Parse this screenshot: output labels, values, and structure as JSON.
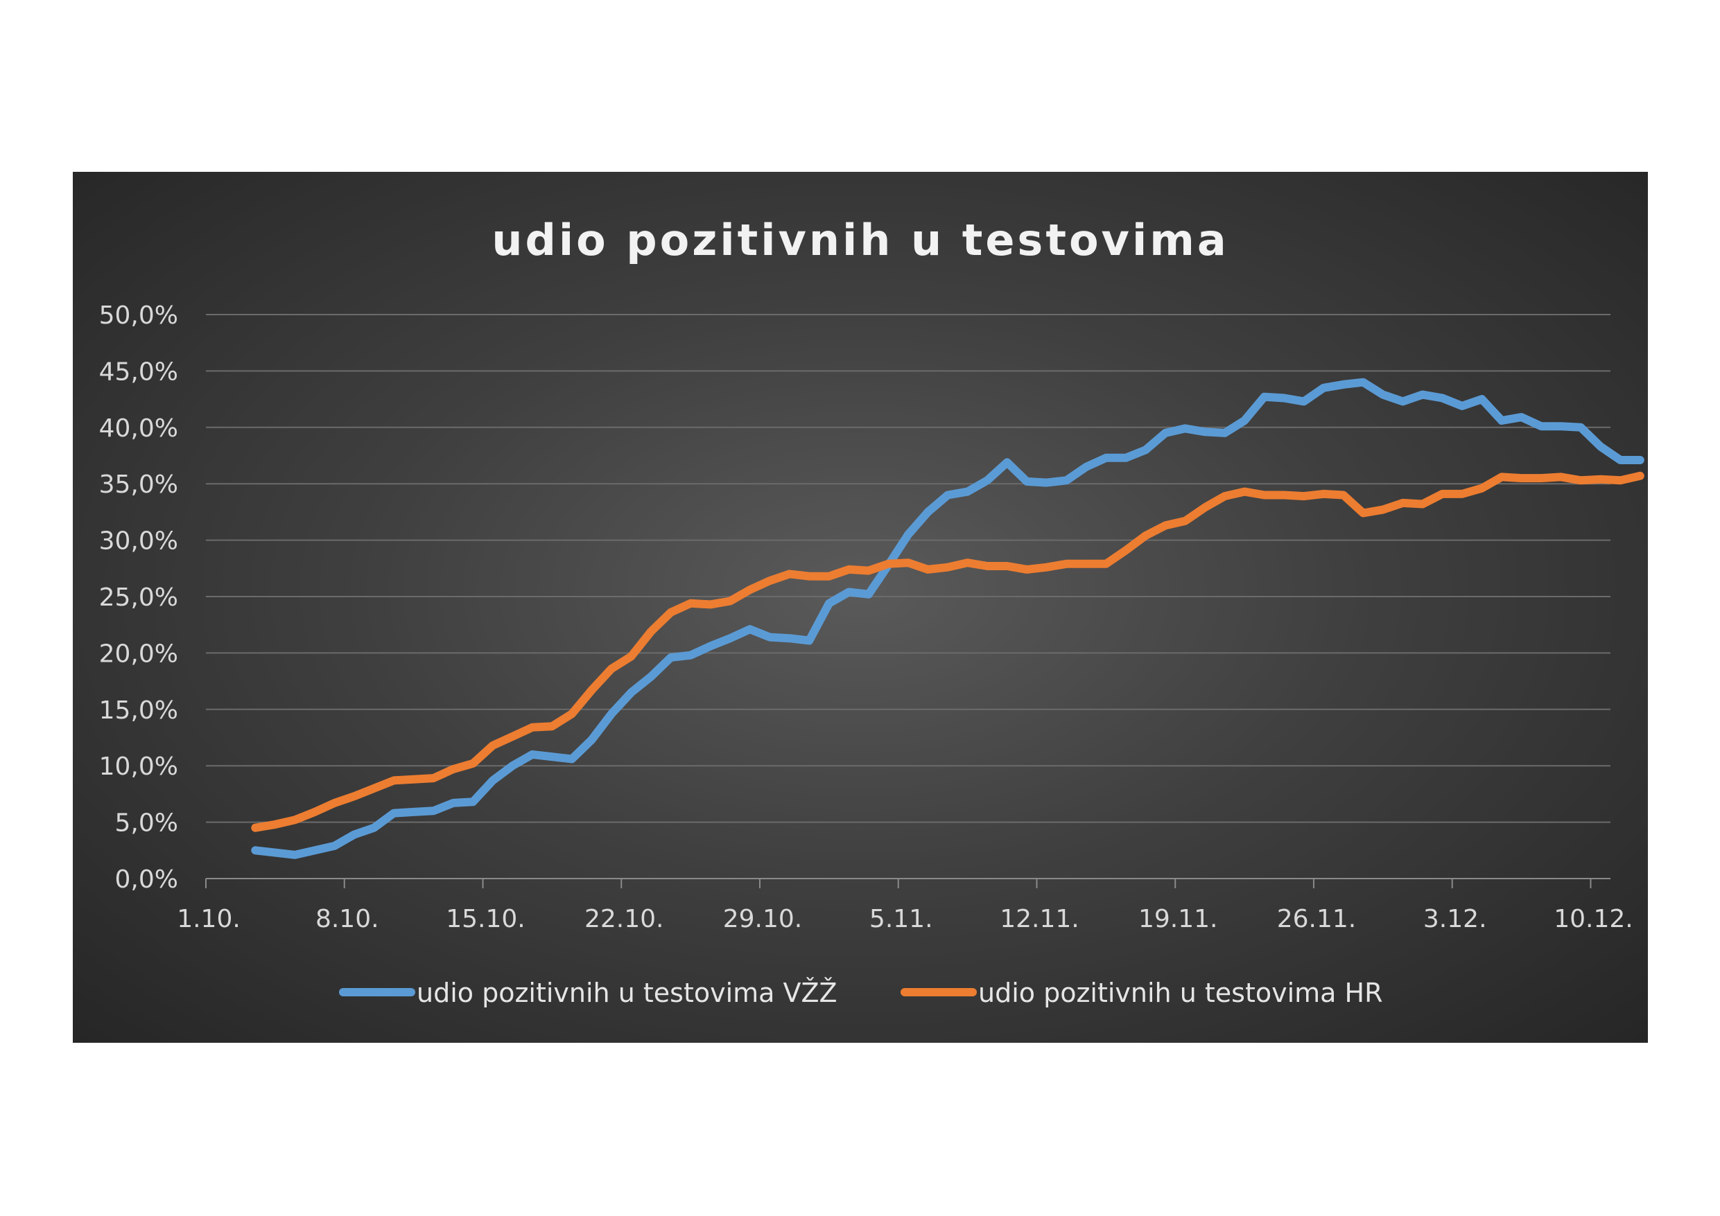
{
  "chart_data": {
    "type": "line",
    "title": "udio pozitivnih u testovima",
    "xlabel": "",
    "ylabel": "",
    "ylim": [
      0,
      50
    ],
    "y_ticks": [
      0,
      5,
      10,
      15,
      20,
      25,
      30,
      35,
      40,
      45,
      50
    ],
    "y_tick_labels": [
      "0,0%",
      "5,0%",
      "10,0%",
      "15,0%",
      "20,0%",
      "25,0%",
      "30,0%",
      "35,0%",
      "40,0%",
      "45,0%",
      "50,0%"
    ],
    "x_tick_labels": [
      "1.10.",
      "8.10.",
      "15.10.",
      "22.10.",
      "29.10.",
      "5.11.",
      "12.11.",
      "19.11.",
      "26.11.",
      "3.12.",
      "10.12."
    ],
    "x_tick_days": [
      1,
      8,
      15,
      22,
      29,
      36,
      43,
      50,
      57,
      64,
      71
    ],
    "x_range_days": [
      1,
      72
    ],
    "legend_position": "bottom",
    "grid": true,
    "series": [
      {
        "name": "udio pozitivnih u testovima VŽŽ",
        "color": "#5b9bd5",
        "start_day": 3.5,
        "values": [
          2.5,
          2.3,
          2.1,
          2.5,
          2.9,
          3.9,
          4.5,
          5.8,
          5.9,
          6.0,
          6.7,
          6.8,
          8.7,
          10.0,
          11.0,
          10.8,
          10.6,
          12.3,
          14.6,
          16.5,
          17.9,
          19.6,
          19.8,
          20.6,
          21.3,
          22.1,
          21.4,
          21.3,
          21.1,
          24.4,
          25.4,
          25.2,
          27.8,
          30.5,
          32.5,
          34.0,
          34.3,
          35.3,
          36.9,
          35.2,
          35.1,
          35.3,
          36.5,
          37.3,
          37.3,
          38.0,
          39.5,
          39.9,
          39.6,
          39.5,
          40.6,
          42.7,
          42.6,
          42.3,
          43.5,
          43.8,
          44.0,
          42.9,
          42.3,
          42.9,
          42.6,
          41.9,
          42.5,
          40.6,
          40.9,
          40.1,
          40.1,
          40.0,
          38.3,
          37.1,
          37.1
        ]
      },
      {
        "name": "udio pozitivnih u testovima HR",
        "color": "#ed7d31",
        "start_day": 3.5,
        "values": [
          4.5,
          4.8,
          5.2,
          5.9,
          6.7,
          7.3,
          8.0,
          8.7,
          8.8,
          8.9,
          9.7,
          10.2,
          11.8,
          12.6,
          13.4,
          13.5,
          14.6,
          16.7,
          18.6,
          19.7,
          21.9,
          23.6,
          24.4,
          24.3,
          24.6,
          25.6,
          26.4,
          27.0,
          26.8,
          26.8,
          27.4,
          27.3,
          27.9,
          28.0,
          27.4,
          27.6,
          28.0,
          27.7,
          27.7,
          27.4,
          27.6,
          27.9,
          27.9,
          27.9,
          29.1,
          30.4,
          31.3,
          31.7,
          32.9,
          33.9,
          34.3,
          34.0,
          34.0,
          33.9,
          34.1,
          34.0,
          32.4,
          32.7,
          33.3,
          33.2,
          34.1,
          34.1,
          34.6,
          35.6,
          35.5,
          35.5,
          35.6,
          35.3,
          35.4,
          35.3,
          35.7
        ]
      }
    ]
  }
}
